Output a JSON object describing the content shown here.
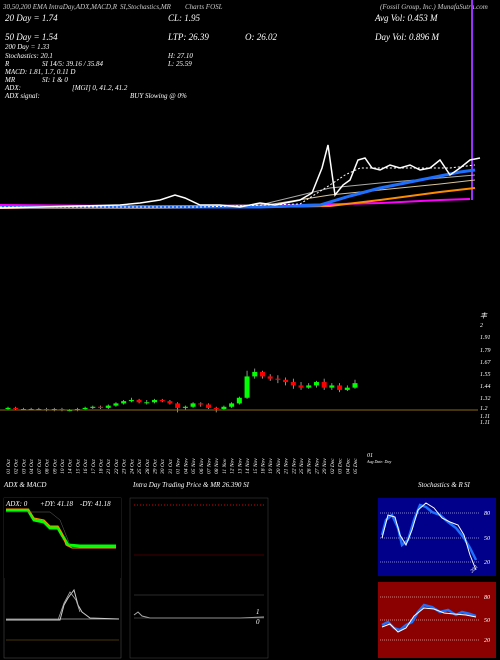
{
  "header": {
    "line1_left": "30,50,200 EMA IntraDay,ADX,MACD,R",
    "line1_mid": "SI,Stochastics,MR",
    "line1_mid2": "Charts FOSL",
    "line1_right": "(Fossil Group, Inc.) MunafaSutra.com",
    "ema20": "20 Day = 1.74",
    "ema50": "50 Day = 1.54",
    "ema200": "200 Day = 1.33",
    "stochastics": "Stochastics: 20.1",
    "r": "R",
    "si": "SI 14/5: 39.16 / 35.84",
    "macd": "MACD: 1.81, 1.7, 0.11 D",
    "mr": "MR",
    "mr_vals": "SI: 1 & 0",
    "adx": "ADX:",
    "adx_signal": "ADX signal:",
    "adx_vals": "[MGI] 0, 41.2, 41.2",
    "buy_signal": "BUY Slowing @ 0%",
    "cl": "CL: 1.95",
    "ltp": "LTP: 26.39",
    "o": "O: 26.02",
    "h": "H: 27.10",
    "l": "L: 25.59",
    "avg_vol": "Avg Vol: 0.453  M",
    "day_vol": "Day Vol: 0.896   M"
  },
  "price_axis": [
    "2",
    "1.91",
    "1.79",
    "1.67",
    "1.55",
    "1.44",
    "1.32",
    "1.2",
    "1.11",
    "1.11"
  ],
  "date_axis": [
    "01 Oct",
    "02 Oct",
    "03 Oct",
    "04 Oct",
    "07 Oct",
    "08 Oct",
    "09 Oct",
    "10 Oct",
    "14 Oct",
    "15 Oct",
    "16 Oct",
    "17 Oct",
    "18 Oct",
    "21 Oct",
    "22 Oct",
    "23 Oct",
    "24 Oct",
    "25 Oct",
    "28 Oct",
    "29 Oct",
    "30 Oct",
    "31 Oct",
    "01 Nov",
    "04 Nov",
    "05 Nov",
    "06 Nov",
    "07 Nov",
    "08 Nov",
    "11 Nov",
    "12 Nov",
    "13 Nov",
    "14 Nov",
    "15 Nov",
    "18 Nov",
    "19 Nov",
    "20 Nov",
    "21 Nov",
    "22 Nov",
    "25 Nov",
    "26 Nov",
    "27 Nov",
    "29 Nov",
    "02 Dec",
    "03 Dec",
    "04 Dec",
    "05 Dec"
  ],
  "date_axis_end": "01",
  "date_axis_end_sub": "Aug Date: Day",
  "panels": {
    "adx_title": "ADX & MACD",
    "adx_vals": "ADX: 0  +DY: 41.18  -DY: 41.18",
    "adx_label_adx": "ADX: 0",
    "adx_label_pdy": "+DY: 41.18",
    "adx_label_mdy": "-DY: 41.18",
    "intraday_title": "Intra Day Trading Price & MR",
    "intraday_price": "26.390",
    "intraday_si": "SI",
    "intraday_zero": "0",
    "intraday_one": "1",
    "stoch_title": "Stochastics & R",
    "stoch_si": "SI",
    "stoch_ticks": [
      "80",
      "50",
      "20"
    ],
    "stoch_last": "20.1",
    "si_ticks": [
      "80",
      "50",
      "20"
    ]
  },
  "colors": {
    "ema_blue": "#1f6fff",
    "ema_orange": "#ff8c00",
    "ema_magenta": "#ff00ff",
    "candle_up": "#00ff00",
    "candle_down": "#ff0000",
    "stoch_bg": "#00008b",
    "si_bg": "#8b0000",
    "adx_green": "#00ff00",
    "adx_orange": "#ff8c00"
  },
  "chart_data": {
    "type": "candlestick",
    "x": [
      "01 Oct",
      "02 Oct",
      "03 Oct",
      "04 Oct",
      "07 Oct",
      "08 Oct",
      "09 Oct",
      "10 Oct",
      "14 Oct",
      "15 Oct",
      "16 Oct",
      "17 Oct",
      "18 Oct",
      "21 Oct",
      "22 Oct",
      "23 Oct",
      "24 Oct",
      "25 Oct",
      "28 Oct",
      "29 Oct",
      "30 Oct",
      "31 Oct",
      "01 Nov",
      "04 Nov",
      "05 Nov",
      "06 Nov",
      "07 Nov",
      "08 Nov",
      "11 Nov",
      "12 Nov",
      "13 Nov",
      "14 Nov",
      "15 Nov",
      "18 Nov",
      "19 Nov",
      "20 Nov",
      "21 Nov",
      "22 Nov",
      "25 Nov",
      "26 Nov",
      "27 Nov",
      "29 Nov",
      "02 Dec",
      "03 Dec",
      "04 Dec",
      "05 Dec"
    ],
    "open": [
      1.19,
      1.2,
      1.19,
      1.19,
      1.19,
      1.19,
      1.18,
      1.19,
      1.18,
      1.18,
      1.19,
      1.2,
      1.21,
      1.2,
      1.22,
      1.24,
      1.26,
      1.27,
      1.25,
      1.25,
      1.27,
      1.26,
      1.24,
      1.2,
      1.21,
      1.24,
      1.23,
      1.2,
      1.19,
      1.21,
      1.24,
      1.29,
      1.48,
      1.52,
      1.48,
      1.46,
      1.45,
      1.43,
      1.4,
      1.38,
      1.4,
      1.43,
      1.38,
      1.4,
      1.36,
      1.38
    ],
    "close": [
      1.2,
      1.19,
      1.19,
      1.19,
      1.19,
      1.18,
      1.19,
      1.18,
      1.18,
      1.19,
      1.2,
      1.21,
      1.2,
      1.22,
      1.24,
      1.26,
      1.27,
      1.25,
      1.25,
      1.27,
      1.26,
      1.24,
      1.2,
      1.21,
      1.24,
      1.23,
      1.2,
      1.19,
      1.21,
      1.24,
      1.29,
      1.48,
      1.52,
      1.48,
      1.46,
      1.45,
      1.43,
      1.4,
      1.38,
      1.4,
      1.43,
      1.38,
      1.4,
      1.36,
      1.38,
      1.42
    ],
    "high": [
      1.21,
      1.21,
      1.2,
      1.2,
      1.2,
      1.2,
      1.2,
      1.2,
      1.19,
      1.2,
      1.21,
      1.22,
      1.22,
      1.23,
      1.25,
      1.27,
      1.29,
      1.28,
      1.27,
      1.28,
      1.28,
      1.27,
      1.25,
      1.22,
      1.25,
      1.25,
      1.24,
      1.21,
      1.22,
      1.25,
      1.3,
      1.53,
      1.55,
      1.53,
      1.5,
      1.49,
      1.47,
      1.46,
      1.43,
      1.42,
      1.44,
      1.46,
      1.42,
      1.42,
      1.4,
      1.45
    ],
    "low": [
      1.18,
      1.18,
      1.18,
      1.18,
      1.18,
      1.17,
      1.17,
      1.17,
      1.17,
      1.17,
      1.18,
      1.19,
      1.19,
      1.19,
      1.21,
      1.23,
      1.25,
      1.24,
      1.23,
      1.24,
      1.25,
      1.23,
      1.16,
      1.18,
      1.2,
      1.21,
      1.19,
      1.16,
      1.18,
      1.2,
      1.23,
      1.28,
      1.46,
      1.46,
      1.44,
      1.42,
      1.4,
      1.37,
      1.36,
      1.37,
      1.38,
      1.36,
      1.36,
      1.34,
      1.35,
      1.37
    ],
    "ylim": [
      1.11,
      2.0
    ],
    "grid": false
  }
}
